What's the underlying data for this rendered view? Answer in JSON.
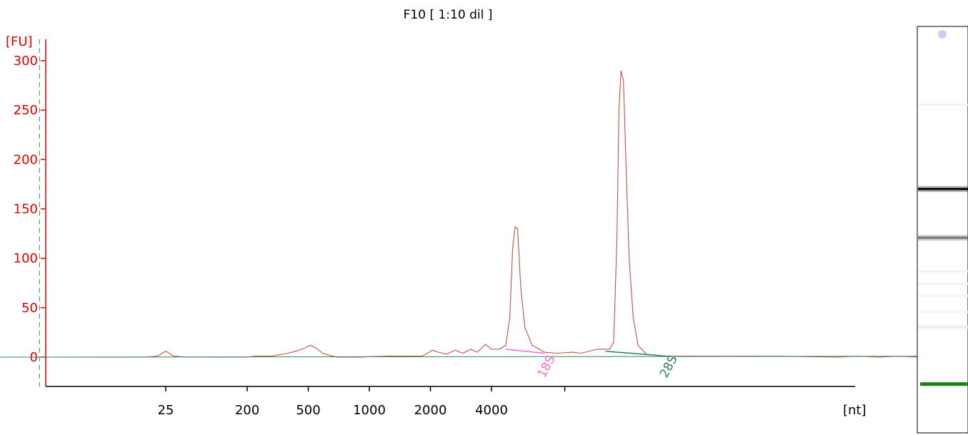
{
  "chart_data": {
    "type": "line",
    "title": "F10  [ 1:10 dil ]",
    "y_unit": "[FU]",
    "x_unit": "[nt]",
    "ylim": [
      -30,
      320
    ],
    "y_ticks": [
      0,
      50,
      100,
      150,
      200,
      250,
      300
    ],
    "x_ticks": [
      {
        "label": "25",
        "s": 0
      },
      {
        "label": "200",
        "s": 0.2
      },
      {
        "label": "500",
        "s": 0.35
      },
      {
        "label": "1000",
        "s": 0.5
      },
      {
        "label": "2000",
        "s": 0.65
      },
      {
        "label": "4000",
        "s": 0.8
      },
      {
        "label": "",
        "s": 0.98
      }
    ],
    "xlim_s": [
      -0.45,
      2.22
    ],
    "marker_lines_s": [
      -0.31,
      2.08
    ],
    "series": [
      {
        "name": "",
        "color": "#c0504d",
        "points": [
          [
            -0.45,
            0
          ],
          [
            -0.05,
            0
          ],
          [
            -0.02,
            1
          ],
          [
            0,
            6
          ],
          [
            0.02,
            1
          ],
          [
            0.05,
            0
          ],
          [
            0.2,
            0
          ],
          [
            0.22,
            1
          ],
          [
            0.26,
            1
          ],
          [
            0.3,
            4
          ],
          [
            0.32,
            6
          ],
          [
            0.34,
            9
          ],
          [
            0.355,
            12
          ],
          [
            0.37,
            9
          ],
          [
            0.385,
            4
          ],
          [
            0.4,
            2
          ],
          [
            0.42,
            0
          ],
          [
            0.48,
            0
          ],
          [
            0.5,
            0.5
          ],
          [
            0.55,
            1
          ],
          [
            0.6,
            1
          ],
          [
            0.63,
            1
          ],
          [
            0.655,
            7
          ],
          [
            0.67,
            5
          ],
          [
            0.69,
            3
          ],
          [
            0.71,
            7
          ],
          [
            0.73,
            4
          ],
          [
            0.75,
            8
          ],
          [
            0.765,
            5
          ],
          [
            0.785,
            13
          ],
          [
            0.8,
            8
          ],
          [
            0.82,
            8
          ],
          [
            0.835,
            12
          ],
          [
            0.845,
            40
          ],
          [
            0.852,
            110
          ],
          [
            0.858,
            132
          ],
          [
            0.864,
            130
          ],
          [
            0.872,
            70
          ],
          [
            0.882,
            30
          ],
          [
            0.9,
            12
          ],
          [
            0.93,
            5
          ],
          [
            0.96,
            4
          ],
          [
            1.0,
            5
          ],
          [
            1.02,
            4
          ],
          [
            1.06,
            8
          ],
          [
            1.09,
            8
          ],
          [
            1.1,
            15
          ],
          [
            1.108,
            120
          ],
          [
            1.113,
            250
          ],
          [
            1.118,
            290
          ],
          [
            1.124,
            280
          ],
          [
            1.13,
            200
          ],
          [
            1.138,
            100
          ],
          [
            1.148,
            40
          ],
          [
            1.16,
            12
          ],
          [
            1.18,
            3
          ],
          [
            1.22,
            1
          ],
          [
            1.3,
            1
          ],
          [
            1.5,
            1
          ],
          [
            1.65,
            0
          ],
          [
            1.7,
            1
          ],
          [
            1.75,
            0
          ],
          [
            1.8,
            1
          ],
          [
            1.85,
            0
          ],
          [
            1.9,
            1
          ],
          [
            1.95,
            0
          ],
          [
            2.0,
            1
          ],
          [
            2.05,
            0
          ],
          [
            2.1,
            1
          ],
          [
            2.22,
            1
          ]
        ]
      },
      {
        "name": "",
        "color": "#2e8b57",
        "points": [
          [
            -0.45,
            0
          ],
          [
            2.22,
            1
          ]
        ]
      }
    ],
    "peak_labels": [
      {
        "text": "18S",
        "s": 0.93,
        "color": "#ff66cc",
        "baseline": [
          [
            0.835,
            8
          ],
          [
            0.93,
            4
          ]
        ]
      },
      {
        "text": "28S",
        "s": 1.23,
        "color": "#2f7a72",
        "baseline": [
          [
            1.08,
            6
          ],
          [
            1.23,
            1
          ]
        ]
      }
    ],
    "ladder": {
      "bands": [
        {
          "level": 0.4,
          "intensity": 0.95
        },
        {
          "level": 0.52,
          "intensity": 0.55
        },
        {
          "level": 0.74,
          "intensity": 0.08
        }
      ],
      "marker_color": "#1a7f1a",
      "marker_level": 0.88
    }
  }
}
